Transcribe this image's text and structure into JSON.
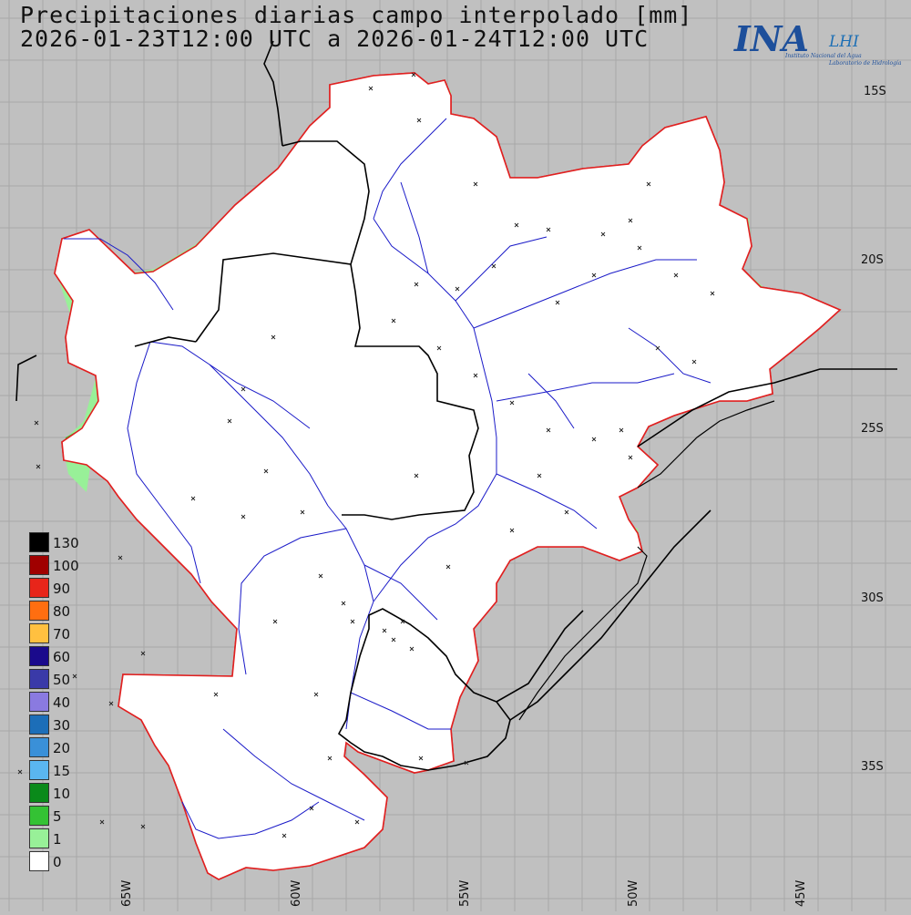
{
  "title": {
    "line1": "Precipitaciones diarias campo interpolado [mm]",
    "line2": "2026-01-23T12:00 UTC a 2026-01-24T12:00 UTC"
  },
  "logo": {
    "main": "INA",
    "secondary": "LHI",
    "subtitle1": "Instituto Nacional del Agua",
    "subtitle2": "Laboratorio de Hidrología"
  },
  "latitude_labels": [
    "15S",
    "20S",
    "25S",
    "30S",
    "35S"
  ],
  "longitude_labels": [
    "65W",
    "60W",
    "55W",
    "50W",
    "45W"
  ],
  "legend": [
    {
      "label": "130",
      "color": "#000000"
    },
    {
      "label": "100",
      "color": "#a00000"
    },
    {
      "label": "90",
      "color": "#e8251a"
    },
    {
      "label": "80",
      "color": "#ff6e10"
    },
    {
      "label": "70",
      "color": "#ffc040"
    },
    {
      "label": "60",
      "color": "#1a0a8c"
    },
    {
      "label": "50",
      "color": "#3a3aa8"
    },
    {
      "label": "40",
      "color": "#8a7ae0"
    },
    {
      "label": "30",
      "color": "#1c6eb8"
    },
    {
      "label": "20",
      "color": "#3a90d8"
    },
    {
      "label": "15",
      "color": "#5ab6f0"
    },
    {
      "label": "10",
      "color": "#0a8a1a"
    },
    {
      "label": "5",
      "color": "#34c234"
    },
    {
      "label": "1",
      "color": "#98f098"
    },
    {
      "label": "0",
      "color": "#ffffff"
    }
  ],
  "colors": {
    "background": "#c0c0c0",
    "basin": "#ffffff",
    "basin_border": "#e02020",
    "rivers": "#1a1ac8",
    "borders": "#000000",
    "grid": "#a8a8a8"
  }
}
